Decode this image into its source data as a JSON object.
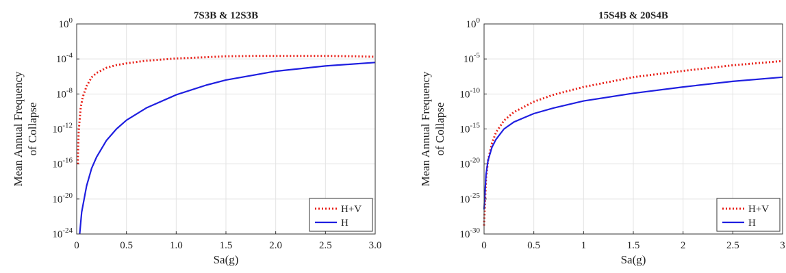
{
  "chart_data": [
    {
      "type": "line",
      "title": "7S3B & 12S3B",
      "xlabel": "Sa(g)",
      "ylabel_lines": [
        "Mean Annual Frequency",
        "of Collapse"
      ],
      "x_tick_labels": [
        "0",
        "0.5",
        "1.0",
        "1.5",
        "2.0",
        "2.5",
        "3.0"
      ],
      "y_tick_exponents": [
        "-24",
        "-20",
        "-16",
        "-12",
        "-8",
        "-4",
        "0"
      ],
      "xlim": [
        0,
        3.0
      ],
      "ylim_log10": [
        -24,
        0
      ],
      "grid": true,
      "legend_position": "bottom-right",
      "series": [
        {
          "name": "H+V",
          "style": "dotted",
          "color": "#e8221a",
          "x": [
            0.01,
            0.02,
            0.04,
            0.06,
            0.1,
            0.15,
            0.2,
            0.3,
            0.4,
            0.5,
            0.7,
            1.0,
            1.3,
            1.5,
            1.8,
            2.0,
            2.5,
            2.8,
            3.0
          ],
          "log10_y": [
            -16.0,
            -12.3,
            -9.6,
            -8.4,
            -7.1,
            -6.1,
            -5.6,
            -5.0,
            -4.7,
            -4.5,
            -4.2,
            -3.95,
            -3.8,
            -3.7,
            -3.65,
            -3.65,
            -3.65,
            -3.7,
            -3.75
          ]
        },
        {
          "name": "H",
          "style": "solid",
          "color": "#1f1fe0",
          "x": [
            0.03,
            0.05,
            0.1,
            0.15,
            0.2,
            0.3,
            0.4,
            0.5,
            0.7,
            1.0,
            1.3,
            1.5,
            2.0,
            2.5,
            3.0
          ],
          "log10_y": [
            -24.0,
            -21.5,
            -18.5,
            -16.5,
            -15.2,
            -13.3,
            -12.0,
            -11.0,
            -9.6,
            -8.1,
            -7.0,
            -6.4,
            -5.4,
            -4.8,
            -4.4
          ]
        }
      ]
    },
    {
      "type": "line",
      "title": "15S4B & 20S4B",
      "xlabel": "Sa(g)",
      "ylabel_lines": [
        "Mean Annual Frequency",
        "of Collapse"
      ],
      "x_tick_labels": [
        "0",
        "0.5",
        "1",
        "1.5",
        "2",
        "2.5",
        "3"
      ],
      "y_tick_exponents": [
        "-30",
        "-25",
        "-20",
        "-15",
        "-10",
        "-5",
        "0"
      ],
      "xlim": [
        0,
        3
      ],
      "ylim_log10": [
        -30,
        0
      ],
      "grid": true,
      "legend_position": "bottom-right",
      "series": [
        {
          "name": "H+V",
          "style": "dotted",
          "color": "#e8221a",
          "x": [
            0.0,
            0.02,
            0.04,
            0.08,
            0.12,
            0.2,
            0.3,
            0.5,
            0.7,
            1.0,
            1.5,
            2.0,
            2.5,
            3.0
          ],
          "log10_y": [
            -28.8,
            -22.0,
            -19.5,
            -17.0,
            -15.5,
            -13.8,
            -12.6,
            -11.1,
            -10.1,
            -9.0,
            -7.6,
            -6.7,
            -5.9,
            -5.3
          ]
        },
        {
          "name": "H",
          "style": "solid",
          "color": "#1f1fe0",
          "x": [
            0.0,
            0.02,
            0.04,
            0.08,
            0.12,
            0.2,
            0.3,
            0.5,
            0.7,
            1.0,
            1.5,
            2.0,
            2.5,
            3.0
          ],
          "log10_y": [
            -26.5,
            -21.5,
            -19.5,
            -17.6,
            -16.5,
            -15.0,
            -14.0,
            -12.8,
            -12.0,
            -11.0,
            -9.9,
            -9.0,
            -8.2,
            -7.6
          ]
        }
      ]
    }
  ]
}
